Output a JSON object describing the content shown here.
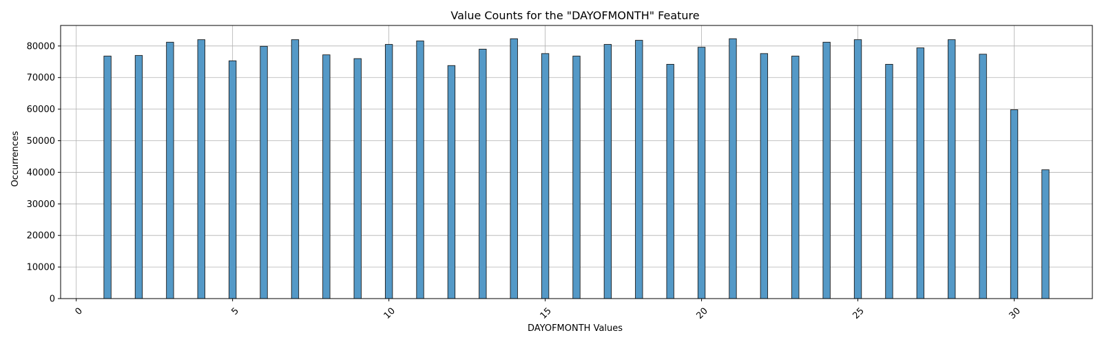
{
  "chart_data": {
    "type": "bar",
    "title": "Value Counts for the \"DAYOFMONTH\" Feature",
    "xlabel": "DAYOFMONTH Values",
    "ylabel": "Occurrences",
    "x": [
      1,
      2,
      3,
      4,
      5,
      6,
      7,
      8,
      9,
      10,
      11,
      12,
      13,
      14,
      15,
      16,
      17,
      18,
      19,
      20,
      21,
      22,
      23,
      24,
      25,
      26,
      27,
      28,
      29,
      30,
      31
    ],
    "values": [
      76800,
      77000,
      81200,
      82000,
      75300,
      79900,
      82000,
      77200,
      76000,
      80500,
      81600,
      73800,
      79000,
      82300,
      77600,
      76800,
      80500,
      81800,
      74200,
      79600,
      82300,
      77600,
      76800,
      81200,
      82000,
      74200,
      79400,
      82000,
      77400,
      59800,
      40800
    ],
    "xlim": [
      -0.5,
      32.5
    ],
    "ylim": [
      0,
      86500
    ],
    "xticks": [
      "0",
      "5",
      "10",
      "15",
      "20",
      "25",
      "30"
    ],
    "yticks": [
      "0",
      "10000",
      "20000",
      "30000",
      "40000",
      "50000",
      "60000",
      "70000",
      "80000"
    ],
    "grid": true,
    "bar_color": "#5499c7",
    "edge_color": "#1a1a1a"
  }
}
